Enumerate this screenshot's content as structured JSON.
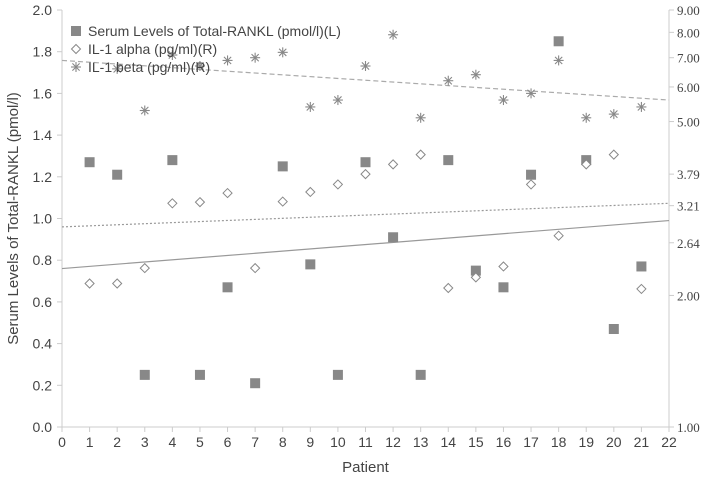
{
  "chart_data": {
    "type": "scatter",
    "xlabel": "Patient",
    "ylabel": "Serum Levels of Total-RANKL (pmol/l)",
    "xlim": [
      0,
      22
    ],
    "x_ticks": [
      "0",
      "1",
      "2",
      "3",
      "4",
      "5",
      "6",
      "7",
      "8",
      "9",
      "10",
      "11",
      "12",
      "13",
      "14",
      "15",
      "16",
      "17",
      "18",
      "19",
      "20",
      "21",
      "22"
    ],
    "ylim_left": [
      0.0,
      2.0
    ],
    "left_ticks": [
      "0.0",
      "0.2",
      "0.4",
      "0.6",
      "0.8",
      "1.0",
      "1.2",
      "1.4",
      "1.6",
      "1.8",
      "2.0"
    ],
    "right_axis": {
      "scale": "log",
      "range": [
        1.0,
        9.0
      ],
      "ticks": [
        "1.00",
        "2.00",
        "2.64",
        "3.21",
        "3.79",
        "5.00",
        "6.00",
        "7.00",
        "8.00",
        "9.00"
      ]
    },
    "legend_position": "top-left",
    "grid": false,
    "series": [
      {
        "name": "Serum Levels of Total-RANKL (pmol/l)(L)",
        "axis": "left",
        "marker": "square",
        "x": [
          1,
          2,
          3,
          4,
          5,
          6,
          7,
          8,
          9,
          10,
          11,
          12,
          13,
          14,
          15,
          16,
          17,
          18,
          19,
          20,
          21
        ],
        "y": [
          1.27,
          1.21,
          0.25,
          1.28,
          0.25,
          0.67,
          0.21,
          1.25,
          0.78,
          0.25,
          1.27,
          0.91,
          0.25,
          1.28,
          0.75,
          0.67,
          1.21,
          1.85,
          1.28,
          0.47,
          0.77
        ]
      },
      {
        "name": "IL-1 alpha (pg/ml)(R)",
        "axis": "right",
        "marker": "diamond",
        "x": [
          1,
          2,
          3,
          4,
          5,
          6,
          7,
          8,
          9,
          10,
          11,
          12,
          13,
          14,
          15,
          16,
          17,
          18,
          19,
          20,
          21
        ],
        "y": [
          2.13,
          2.13,
          2.31,
          3.25,
          3.27,
          3.43,
          2.31,
          3.28,
          3.45,
          3.59,
          3.79,
          3.99,
          4.2,
          2.08,
          2.2,
          2.33,
          3.59,
          2.74,
          3.99,
          4.2,
          2.07
        ]
      },
      {
        "name": "IL-1 beta (pg/ml)(R)",
        "axis": "right",
        "marker": "asterisk",
        "x": [
          2,
          3,
          4,
          5,
          6,
          7,
          8,
          9,
          10,
          11,
          12,
          13,
          14,
          15,
          16,
          17,
          18,
          19,
          20,
          21
        ],
        "y": [
          6.6,
          5.3,
          7.1,
          6.7,
          6.9,
          7.0,
          7.2,
          5.4,
          5.6,
          6.7,
          7.9,
          5.1,
          6.2,
          6.4,
          5.6,
          5.8,
          6.9,
          5.1,
          5.2,
          5.4
        ]
      }
    ],
    "trendlines": [
      {
        "series": "Serum Levels of Total-RANKL (pmol/l)(L)",
        "axis": "left",
        "style": "solid",
        "y_at_x0": 0.76,
        "y_at_x22": 0.99
      },
      {
        "series": "IL-1 alpha (pg/ml)(R)",
        "axis": "right",
        "style": "dotted",
        "y_at_x0": 2.87,
        "y_at_x22": 3.25
      },
      {
        "series": "IL-1 beta (pg/ml)(R)",
        "axis": "right",
        "style": "dashed",
        "y_at_x0": 6.9,
        "y_at_x22": 5.6
      }
    ],
    "colors": {
      "axis": "#cccccc",
      "text": "#444444",
      "square_marker": "#888888",
      "open_marker": "#888888",
      "trend_solid": "#999999",
      "trend_dotted": "#999999",
      "trend_dashed": "#aaaaaa"
    }
  }
}
